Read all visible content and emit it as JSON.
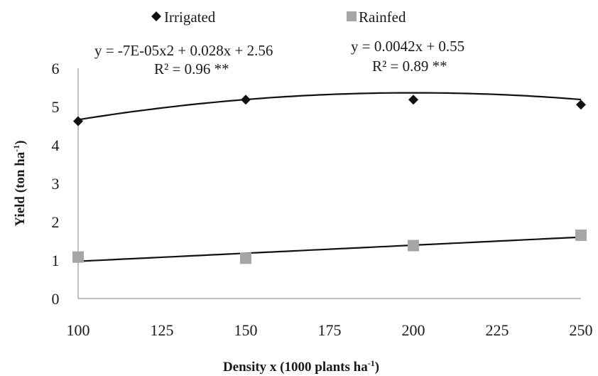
{
  "chart_data": {
    "type": "scatter",
    "x": [
      100,
      150,
      200,
      250
    ],
    "series": [
      {
        "name": "Irrigated",
        "marker": "diamond",
        "color": "#111111",
        "values": [
          4.62,
          5.18,
          5.18,
          5.05
        ],
        "trendline": {
          "kind": "poly2",
          "a": -7e-05,
          "b": 0.028,
          "c": 2.56
        },
        "equation": "y = -7E-05x2 + 0.028x + 2.56",
        "r2": "R² = 0.96 **"
      },
      {
        "name": "Rainfed",
        "marker": "square",
        "color": "#a6a6a6",
        "values": [
          1.08,
          1.05,
          1.38,
          1.65
        ],
        "trendline": {
          "kind": "linear",
          "slope": 0.0042,
          "intercept": 0.55
        },
        "equation": "y = 0.0042x + 0.55",
        "r2": "R² = 0.89 **"
      }
    ],
    "x_ticks": [
      "100",
      "125",
      "150",
      "175",
      "200",
      "225",
      "250"
    ],
    "y_ticks": [
      "0",
      "1",
      "2",
      "3",
      "4",
      "5",
      "6"
    ],
    "xlim": [
      100,
      250
    ],
    "ylim": [
      0,
      6
    ],
    "ylabel": "Yield (ton ha",
    "ylabel_sup": "-1",
    "ylabel_end": ")",
    "xlabel": "Density x (1000 plants ha",
    "xlabel_sup": "-1",
    "xlabel_end": ")",
    "grid": false,
    "legend_position": "top"
  }
}
